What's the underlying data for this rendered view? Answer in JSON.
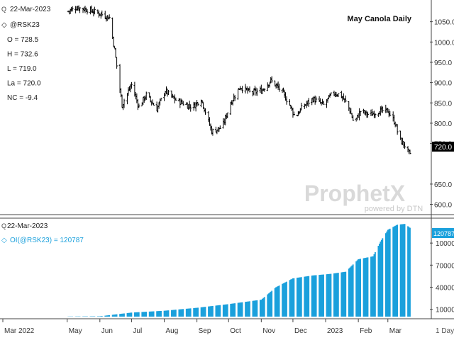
{
  "chart_data": [
    {
      "type": "bar",
      "subtype": "ohlc-daily",
      "title": "May Canola Daily",
      "date": "22-Mar-2023",
      "symbol_label": "@RSK23",
      "stats": [
        {
          "key": "O",
          "value": "728.5"
        },
        {
          "key": "H",
          "value": "732.6"
        },
        {
          "key": "L",
          "value": "719.0"
        },
        {
          "key": "La",
          "value": "720.0"
        },
        {
          "key": "NC",
          "value": "-9.4"
        }
      ],
      "last_value_label": "720.0",
      "yticks": [
        "1050.0",
        "1000.0",
        "950.0",
        "900.0",
        "850.0",
        "800.0",
        "750.0",
        "650.0",
        "600.0"
      ],
      "ylim": [
        580,
        1100
      ],
      "x_months": [
        "Mar 2022",
        "May",
        "Jun",
        "Jul",
        "Aug",
        "Sep",
        "Oct",
        "Nov",
        "Dec",
        "2023",
        "Feb",
        "Mar"
      ],
      "x_right_label": "1 Day",
      "close_path": [
        [
          "May 1",
          1075
        ],
        [
          "May 10",
          1085
        ],
        [
          "May 20",
          1080
        ],
        [
          "Jun 1",
          1070
        ],
        [
          "Jun 10",
          1060
        ],
        [
          "Jun 15",
          980
        ],
        [
          "Jun 22",
          845
        ],
        [
          "Jul 1",
          895
        ],
        [
          "Jul 8",
          840
        ],
        [
          "Jul 15",
          870
        ],
        [
          "Jul 25",
          835
        ],
        [
          "Aug 2",
          880
        ],
        [
          "Aug 10",
          860
        ],
        [
          "Aug 18",
          850
        ],
        [
          "Aug 28",
          840
        ],
        [
          "Sep 5",
          860
        ],
        [
          "Sep 15",
          780
        ],
        [
          "Sep 25",
          790
        ],
        [
          "Oct 3",
          850
        ],
        [
          "Oct 12",
          890
        ],
        [
          "Oct 22",
          875
        ],
        [
          "Nov 1",
          880
        ],
        [
          "Nov 10",
          905
        ],
        [
          "Nov 20",
          880
        ],
        [
          "Nov 28",
          845
        ],
        [
          "Dec 3",
          815
        ],
        [
          "Dec 10",
          840
        ],
        [
          "Dec 20",
          860
        ],
        [
          "Dec 30",
          845
        ],
        [
          "Jan 8",
          875
        ],
        [
          "Jan 15",
          870
        ],
        [
          "Jan 22",
          845
        ],
        [
          "Jan 28",
          800
        ],
        [
          "Feb 3",
          830
        ],
        [
          "Feb 12",
          820
        ],
        [
          "Feb 20",
          830
        ],
        [
          "Mar 1",
          830
        ],
        [
          "Mar 8",
          800
        ],
        [
          "Mar 12",
          760
        ],
        [
          "Mar 17",
          745
        ],
        [
          "Mar 22",
          720
        ]
      ]
    },
    {
      "type": "bar",
      "series_label": "OI(@RSK23) = 120787",
      "date": "22-Mar-2023",
      "last_value_label": "120787",
      "yticks": [
        "100000",
        "70000",
        "40000",
        "10000"
      ],
      "ylim": [
        0,
        130000
      ],
      "oi_path": [
        [
          "May 1",
          200
        ],
        [
          "Jun 1",
          500
        ],
        [
          "Jul 1",
          5500
        ],
        [
          "Aug 1",
          8000
        ],
        [
          "Sep 1",
          12000
        ],
        [
          "Oct 1",
          17000
        ],
        [
          "Nov 1",
          23000
        ],
        [
          "Nov 15",
          40000
        ],
        [
          "Dec 1",
          52000
        ],
        [
          "Dec 20",
          56000
        ],
        [
          "Jan 5",
          58000
        ],
        [
          "Jan 20",
          61000
        ],
        [
          "Feb 1",
          78000
        ],
        [
          "Feb 15",
          82000
        ],
        [
          "Feb 22",
          102000
        ],
        [
          "Mar 1",
          118000
        ],
        [
          "Mar 10",
          125000
        ],
        [
          "Mar 17",
          126000
        ],
        [
          "Mar 22",
          120787
        ]
      ]
    }
  ],
  "watermark": {
    "brand": "ProphetX",
    "sub": "powered by DTN"
  }
}
